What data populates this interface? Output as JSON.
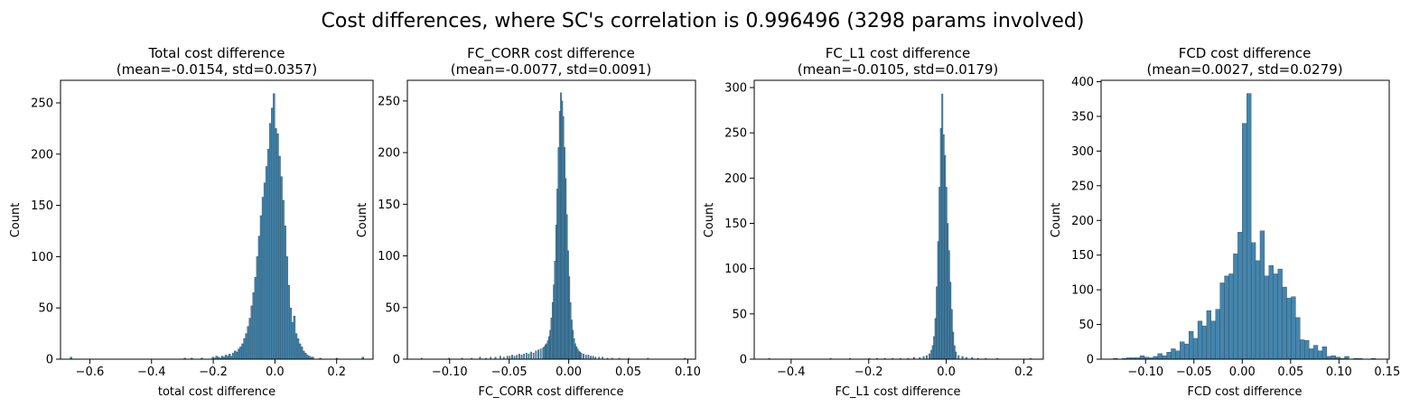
{
  "figure": {
    "suptitle": "Cost differences, where SC's correlation is 0.996496 (3298 params involved)"
  },
  "bar_color": "#3b7ea8",
  "bar_edge_color": "#2b4d63",
  "chart_data": [
    {
      "type": "bar",
      "title": "Total cost difference",
      "subtitle": "(mean=-0.0154, std=0.0357)",
      "xlabel": "total cost difference",
      "ylabel": "Count",
      "xlim": [
        -0.695,
        0.318
      ],
      "ylim": [
        0,
        272
      ],
      "xticks": [
        -0.6,
        -0.4,
        -0.2,
        0.0,
        0.2
      ],
      "xtick_labels": [
        "−0.6",
        "−0.4",
        "−0.2",
        "0.0",
        "0.2"
      ],
      "yticks": [
        0,
        50,
        100,
        150,
        200,
        250
      ],
      "ytick_labels": [
        "0",
        "50",
        "100",
        "150",
        "200",
        "250"
      ],
      "bin_width": 0.006,
      "bins": [
        [
          -0.664,
          2
        ],
        [
          -0.295,
          1
        ],
        [
          -0.273,
          1
        ],
        [
          -0.24,
          1
        ],
        [
          -0.204,
          2
        ],
        [
          -0.198,
          1
        ],
        [
          -0.192,
          3
        ],
        [
          -0.186,
          2
        ],
        [
          -0.18,
          1
        ],
        [
          -0.174,
          3
        ],
        [
          -0.168,
          2
        ],
        [
          -0.162,
          4
        ],
        [
          -0.156,
          3
        ],
        [
          -0.15,
          5
        ],
        [
          -0.144,
          3
        ],
        [
          -0.138,
          6
        ],
        [
          -0.132,
          8
        ],
        [
          -0.126,
          7
        ],
        [
          -0.12,
          10
        ],
        [
          -0.114,
          12
        ],
        [
          -0.108,
          15
        ],
        [
          -0.102,
          20
        ],
        [
          -0.096,
          25
        ],
        [
          -0.09,
          32
        ],
        [
          -0.084,
          40
        ],
        [
          -0.078,
          52
        ],
        [
          -0.072,
          65
        ],
        [
          -0.066,
          80
        ],
        [
          -0.06,
          100
        ],
        [
          -0.054,
          120
        ],
        [
          -0.048,
          140
        ],
        [
          -0.042,
          158
        ],
        [
          -0.036,
          172
        ],
        [
          -0.03,
          188
        ],
        [
          -0.024,
          205
        ],
        [
          -0.018,
          230
        ],
        [
          -0.012,
          245
        ],
        [
          -0.006,
          259
        ],
        [
          0.0,
          225
        ],
        [
          0.006,
          220
        ],
        [
          0.012,
          198
        ],
        [
          0.018,
          178
        ],
        [
          0.024,
          155
        ],
        [
          0.03,
          130
        ],
        [
          0.036,
          100
        ],
        [
          0.042,
          72
        ],
        [
          0.048,
          50
        ],
        [
          0.054,
          36
        ],
        [
          0.06,
          42
        ],
        [
          0.066,
          25
        ],
        [
          0.072,
          20
        ],
        [
          0.078,
          15
        ],
        [
          0.084,
          12
        ],
        [
          0.09,
          8
        ],
        [
          0.096,
          6
        ],
        [
          0.102,
          4
        ],
        [
          0.108,
          3
        ],
        [
          0.114,
          2
        ],
        [
          0.12,
          2
        ],
        [
          0.144,
          1
        ],
        [
          0.198,
          1
        ],
        [
          0.282,
          2
        ]
      ]
    },
    {
      "type": "bar",
      "title": "FC_CORR cost difference",
      "subtitle": "(mean=-0.0077, std=0.0091)",
      "xlabel": "FC_CORR cost difference",
      "ylabel": "Count",
      "xlim": [
        -0.1355,
        0.1065
      ],
      "ylim": [
        0,
        270
      ],
      "xticks": [
        -0.1,
        -0.05,
        0.0,
        0.05,
        0.1
      ],
      "xtick_labels": [
        "−0.10",
        "−0.05",
        "0.00",
        "0.05",
        "0.10"
      ],
      "yticks": [
        0,
        50,
        100,
        150,
        200,
        250
      ],
      "ytick_labels": [
        "0",
        "50",
        "100",
        "150",
        "200",
        "250"
      ],
      "bin_width": 0.001,
      "bins": [
        [
          -0.124,
          1
        ],
        [
          -0.101,
          1
        ],
        [
          -0.09,
          1
        ],
        [
          -0.082,
          1
        ],
        [
          -0.075,
          2
        ],
        [
          -0.07,
          1
        ],
        [
          -0.066,
          2
        ],
        [
          -0.062,
          2
        ],
        [
          -0.058,
          3
        ],
        [
          -0.055,
          2
        ],
        [
          -0.052,
          3
        ],
        [
          -0.05,
          3
        ],
        [
          -0.048,
          4
        ],
        [
          -0.046,
          3
        ],
        [
          -0.044,
          4
        ],
        [
          -0.042,
          5
        ],
        [
          -0.04,
          4
        ],
        [
          -0.038,
          5
        ],
        [
          -0.036,
          6
        ],
        [
          -0.034,
          5
        ],
        [
          -0.032,
          7
        ],
        [
          -0.03,
          6
        ],
        [
          -0.028,
          8
        ],
        [
          -0.026,
          9
        ],
        [
          -0.024,
          10
        ],
        [
          -0.022,
          11
        ],
        [
          -0.021,
          12
        ],
        [
          -0.02,
          14
        ],
        [
          -0.019,
          15
        ],
        [
          -0.018,
          18
        ],
        [
          -0.017,
          22
        ],
        [
          -0.016,
          28
        ],
        [
          -0.015,
          40
        ],
        [
          -0.014,
          55
        ],
        [
          -0.013,
          72
        ],
        [
          -0.012,
          95
        ],
        [
          -0.011,
          130
        ],
        [
          -0.01,
          165
        ],
        [
          -0.009,
          205
        ],
        [
          -0.008,
          240
        ],
        [
          -0.007,
          258
        ],
        [
          -0.006,
          250
        ],
        [
          -0.005,
          235
        ],
        [
          -0.004,
          205
        ],
        [
          -0.003,
          175
        ],
        [
          -0.002,
          140
        ],
        [
          -0.001,
          105
        ],
        [
          0.0,
          80
        ],
        [
          0.001,
          55
        ],
        [
          0.002,
          38
        ],
        [
          0.003,
          28
        ],
        [
          0.004,
          20
        ],
        [
          0.005,
          15
        ],
        [
          0.006,
          12
        ],
        [
          0.007,
          10
        ],
        [
          0.008,
          8
        ],
        [
          0.009,
          7
        ],
        [
          0.01,
          6
        ],
        [
          0.012,
          5
        ],
        [
          0.014,
          4
        ],
        [
          0.016,
          4
        ],
        [
          0.018,
          3
        ],
        [
          0.02,
          3
        ],
        [
          0.022,
          2
        ],
        [
          0.025,
          2
        ],
        [
          0.028,
          2
        ],
        [
          0.032,
          1
        ],
        [
          0.036,
          1
        ],
        [
          0.042,
          1
        ],
        [
          0.05,
          1
        ],
        [
          0.066,
          1
        ],
        [
          0.097,
          1
        ]
      ]
    },
    {
      "type": "bar",
      "title": "FC_L1 cost difference",
      "subtitle": "(mean=-0.0105, std=0.0179)",
      "xlabel": "FC_L1 cost difference",
      "ylabel": "Count",
      "xlim": [
        -0.495,
        0.25
      ],
      "ylim": [
        0,
        308
      ],
      "xticks": [
        -0.4,
        -0.2,
        0.0,
        0.2
      ],
      "xtick_labels": [
        "−0.4",
        "−0.2",
        "0.0",
        "0.2"
      ],
      "yticks": [
        0,
        50,
        100,
        150,
        200,
        250,
        300
      ],
      "ytick_labels": [
        "0",
        "50",
        "100",
        "150",
        "200",
        "250",
        "300"
      ],
      "bin_width": 0.0035,
      "bins": [
        [
          -0.458,
          1
        ],
        [
          -0.3,
          1
        ],
        [
          -0.25,
          1
        ],
        [
          -0.2,
          1
        ],
        [
          -0.18,
          1
        ],
        [
          -0.16,
          1
        ],
        [
          -0.14,
          1
        ],
        [
          -0.12,
          1
        ],
        [
          -0.1,
          1
        ],
        [
          -0.085,
          2
        ],
        [
          -0.07,
          2
        ],
        [
          -0.06,
          3
        ],
        [
          -0.052,
          4
        ],
        [
          -0.045,
          6
        ],
        [
          -0.04,
          10
        ],
        [
          -0.0365,
          15
        ],
        [
          -0.033,
          25
        ],
        [
          -0.0295,
          45
        ],
        [
          -0.026,
          80
        ],
        [
          -0.0225,
          130
        ],
        [
          -0.019,
          190
        ],
        [
          -0.0155,
          255
        ],
        [
          -0.012,
          293
        ],
        [
          -0.0085,
          248
        ],
        [
          -0.005,
          225
        ],
        [
          -0.0015,
          190
        ],
        [
          0.002,
          150
        ],
        [
          0.0055,
          120
        ],
        [
          0.009,
          85
        ],
        [
          0.0125,
          55
        ],
        [
          0.016,
          30
        ],
        [
          0.0195,
          15
        ],
        [
          0.023,
          8
        ],
        [
          0.03,
          4
        ],
        [
          0.04,
          3
        ],
        [
          0.05,
          2
        ],
        [
          0.065,
          2
        ],
        [
          0.08,
          1
        ],
        [
          0.1,
          1
        ],
        [
          0.13,
          1
        ],
        [
          0.216,
          1
        ]
      ]
    },
    {
      "type": "bar",
      "title": "FCD cost difference",
      "subtitle": "(mean=0.0027, std=0.0279)",
      "xlabel": "FCD cost difference",
      "ylabel": "Count",
      "xlim": [
        -0.146,
        0.152
      ],
      "ylim": [
        0,
        402
      ],
      "xticks": [
        -0.1,
        -0.05,
        0.0,
        0.05,
        0.1,
        0.15
      ],
      "xtick_labels": [
        "−0.10",
        "−0.05",
        "0.00",
        "0.05",
        "0.10",
        "0.15"
      ],
      "yticks": [
        0,
        50,
        100,
        150,
        200,
        250,
        300,
        350,
        400
      ],
      "ytick_labels": [
        "0",
        "50",
        "100",
        "150",
        "200",
        "250",
        "300",
        "350",
        "400"
      ],
      "bin_width": 0.0046,
      "bins": [
        [
          -0.1334,
          1
        ],
        [
          -0.1242,
          1
        ],
        [
          -0.1196,
          2
        ],
        [
          -0.115,
          2
        ],
        [
          -0.1104,
          2
        ],
        [
          -0.1058,
          5
        ],
        [
          -0.1012,
          3
        ],
        [
          -0.0966,
          2
        ],
        [
          -0.092,
          4
        ],
        [
          -0.0874,
          8
        ],
        [
          -0.0828,
          5
        ],
        [
          -0.0782,
          10
        ],
        [
          -0.0736,
          15
        ],
        [
          -0.069,
          12
        ],
        [
          -0.0644,
          25
        ],
        [
          -0.0598,
          22
        ],
        [
          -0.0552,
          40
        ],
        [
          -0.0506,
          30
        ],
        [
          -0.046,
          55
        ],
        [
          -0.0414,
          48
        ],
        [
          -0.0368,
          70
        ],
        [
          -0.0322,
          55
        ],
        [
          -0.0276,
          72
        ],
        [
          -0.023,
          110
        ],
        [
          -0.0184,
          120
        ],
        [
          -0.0138,
          123
        ],
        [
          -0.0092,
          152
        ],
        [
          -0.0046,
          183
        ],
        [
          0.0,
          340
        ],
        [
          0.0046,
          383
        ],
        [
          0.0092,
          168
        ],
        [
          0.0138,
          142
        ],
        [
          0.0184,
          185
        ],
        [
          0.023,
          120
        ],
        [
          0.0276,
          135
        ],
        [
          0.0322,
          123
        ],
        [
          0.0368,
          130
        ],
        [
          0.0414,
          104
        ],
        [
          0.046,
          88
        ],
        [
          0.0506,
          90
        ],
        [
          0.0552,
          60
        ],
        [
          0.0598,
          28
        ],
        [
          0.0644,
          27
        ],
        [
          0.069,
          15
        ],
        [
          0.0736,
          20
        ],
        [
          0.0782,
          12
        ],
        [
          0.0828,
          18
        ],
        [
          0.0874,
          4
        ],
        [
          0.092,
          5
        ],
        [
          0.0966,
          3
        ],
        [
          0.1012,
          1
        ],
        [
          0.1058,
          4
        ],
        [
          0.115,
          1
        ],
        [
          0.1196,
          1
        ],
        [
          0.1334,
          1
        ]
      ]
    }
  ]
}
